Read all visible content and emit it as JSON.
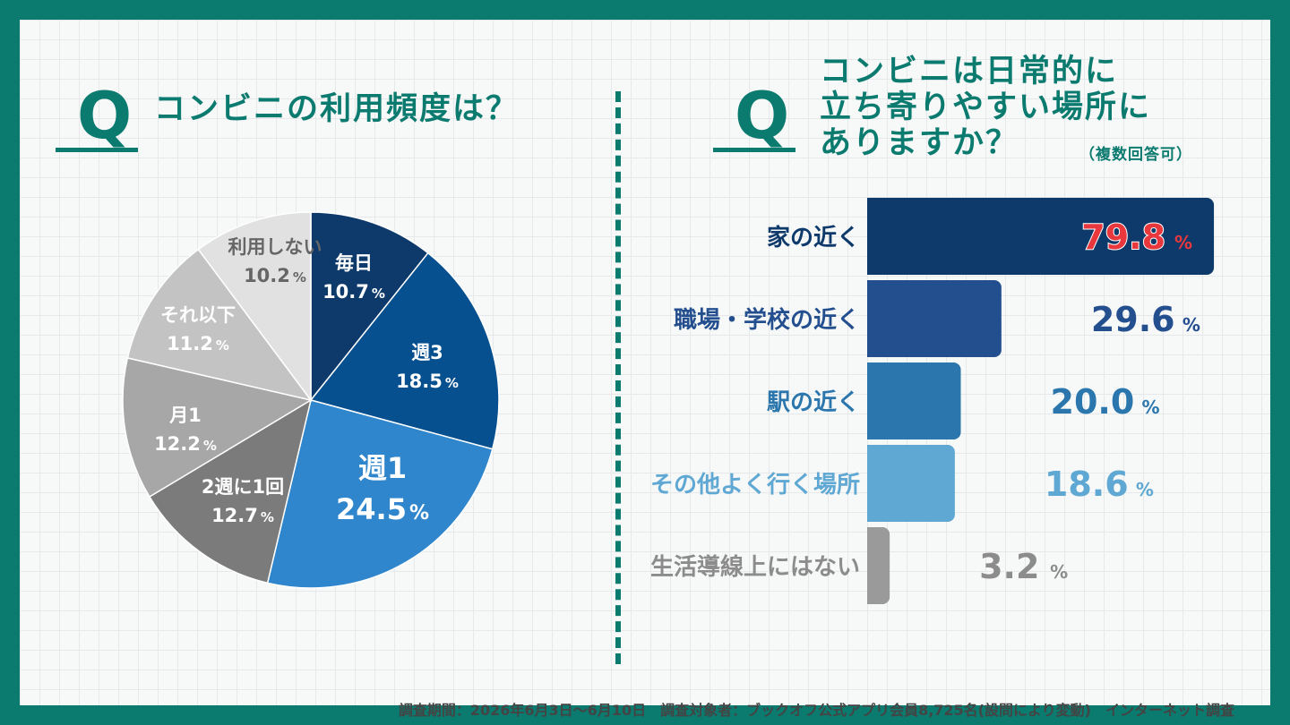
{
  "left": {
    "q": "Q",
    "title": "コンビニの利用頻度は？"
  },
  "right": {
    "q": "Q",
    "title_lines": [
      "コンビニは日常的に",
      "立ち寄りやすい場所に",
      "ありますか？"
    ],
    "note": "（複数回答可）"
  },
  "footer": "調査期間：2026年6月3日〜6月10日　調査対象者：ブックオフ公式アプリ会員8,725名(設問により変動)　インターネット調査",
  "colors": {
    "brand": "#0b7a6f",
    "highlight": "#e8383d"
  },
  "chart_data": [
    {
      "type": "pie",
      "title": "コンビニの利用頻度は？",
      "unit": "%",
      "slices": [
        {
          "label": "毎日",
          "value": 10.7,
          "color": "#0d3a6b"
        },
        {
          "label": "週3",
          "value": 18.5,
          "color": "#06508f"
        },
        {
          "label": "週1",
          "value": 24.5,
          "color": "#2f86cc"
        },
        {
          "label": "2週に1回",
          "value": 12.7,
          "color": "#7b7b7b"
        },
        {
          "label": "月1",
          "value": 12.2,
          "color": "#a7a7a7"
        },
        {
          "label": "それ以下",
          "value": 11.2,
          "color": "#c3c3c3"
        },
        {
          "label": "利用しない",
          "value": 10.2,
          "color": "#e1e1e1"
        }
      ]
    },
    {
      "type": "bar",
      "orientation": "horizontal",
      "title": "コンビニは日常的に立ち寄りやすい場所にありますか？",
      "unit": "%",
      "categories": [
        "家の近く",
        "職場・学校の近く",
        "駅の近く",
        "その他よく行く場所",
        "生活導線上にはない"
      ],
      "values": [
        79.8,
        29.6,
        20.0,
        18.6,
        3.2
      ],
      "value_labels": [
        "79.8",
        "29.6",
        "20.0",
        "18.6",
        "3.2"
      ],
      "bar_colors": [
        "#0d3a6b",
        "#244f8f",
        "#2a76ad",
        "#5fa8d3",
        "#9a9a9a"
      ],
      "label_colors": [
        "#0d3a6b",
        "#244f8f",
        "#2a76ad",
        "#5fa8d3",
        "#8c8c8c"
      ],
      "xlim": [
        0,
        80
      ]
    }
  ]
}
